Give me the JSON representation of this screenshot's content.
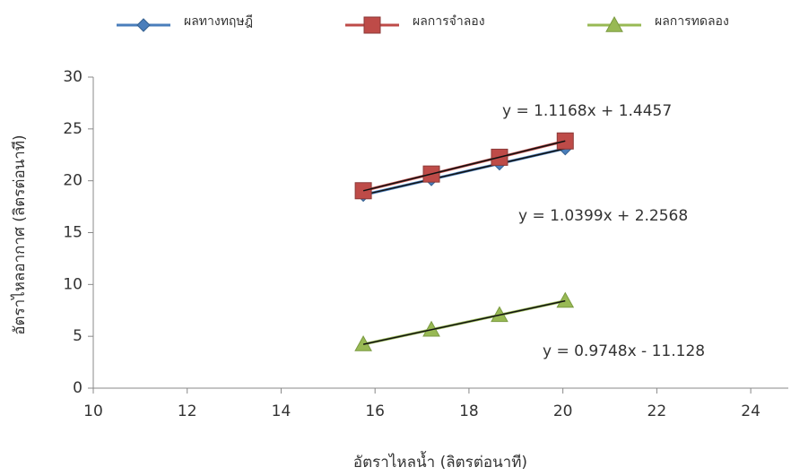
{
  "chart_data": {
    "type": "line",
    "x_label": "อัตราไหลน้ำ (ลิตรต่อนาที)",
    "y_label": "อัตราไหลอากาศ (ลิตรต่อนาที)",
    "x": [
      15.75,
      17.2,
      18.65,
      20.05
    ],
    "series": [
      {
        "name": "ผลทางทฤษฎี",
        "color": "#4a7ebb",
        "marker": "diamond",
        "values": [
          18.63,
          20.14,
          21.65,
          23.11
        ],
        "trendline": {
          "label": "y = 1.0399x + 2.2568",
          "slope": 1.0399,
          "intercept": 2.2568,
          "color": "#4a7ebb"
        }
      },
      {
        "name": "ผลการจำลอง",
        "color": "#be4b48",
        "marker": "square",
        "values": [
          19.04,
          20.65,
          22.27,
          23.84
        ],
        "trendline": {
          "label": "y = 1.1168x + 1.4457",
          "slope": 1.1168,
          "intercept": 1.4457,
          "color": "#a8282a"
        }
      },
      {
        "name": "ผลการทดลอง",
        "color": "#98b954",
        "marker": "triangle",
        "values": [
          4.23,
          5.64,
          7.05,
          8.42
        ],
        "trendline": {
          "label": "y = 0.9748x - 11.128",
          "slope": 0.9748,
          "intercept": -11.128,
          "color": "#2e9e5a"
        }
      }
    ],
    "xlim": [
      10,
      24.8
    ],
    "xticks": [
      10,
      12,
      14,
      16,
      18,
      20,
      22,
      24
    ],
    "ylim": [
      0,
      30
    ],
    "yticks": [
      0,
      5,
      10,
      15,
      20,
      25,
      30
    ],
    "grid": false
  }
}
